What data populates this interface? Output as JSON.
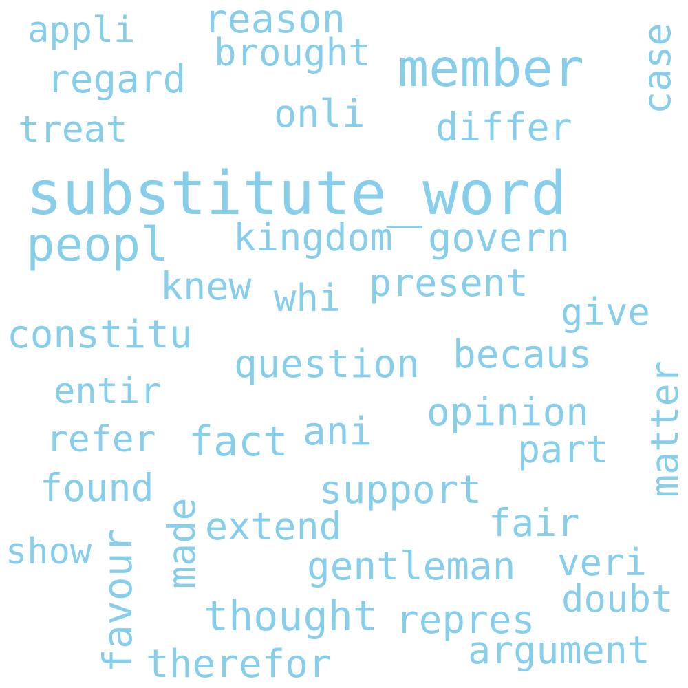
{
  "background": "#ffffff",
  "word_color": "#87ceeb",
  "words": [
    {
      "id": "substitute_word",
      "text": "substitute_word"
    },
    {
      "id": "member",
      "text": "member"
    },
    {
      "id": "peopl",
      "text": "peopl"
    },
    {
      "id": "reason",
      "text": "reason"
    },
    {
      "id": "brought",
      "text": "brought"
    },
    {
      "id": "appli",
      "text": "appli"
    },
    {
      "id": "regard",
      "text": "regard"
    },
    {
      "id": "case",
      "text": "case"
    },
    {
      "id": "onli",
      "text": "onli"
    },
    {
      "id": "treat",
      "text": "treat"
    },
    {
      "id": "differ",
      "text": "differ"
    },
    {
      "id": "kingdom",
      "text": "kingdom"
    },
    {
      "id": "govern",
      "text": "govern"
    },
    {
      "id": "knew",
      "text": "knew"
    },
    {
      "id": "whi",
      "text": "whi"
    },
    {
      "id": "present",
      "text": "present"
    },
    {
      "id": "give",
      "text": "give"
    },
    {
      "id": "constitu",
      "text": "constitu"
    },
    {
      "id": "question",
      "text": "question"
    },
    {
      "id": "becaus",
      "text": "becaus"
    },
    {
      "id": "matter",
      "text": "matter"
    },
    {
      "id": "entir",
      "text": "entir"
    },
    {
      "id": "opinion",
      "text": "opinion"
    },
    {
      "id": "refer",
      "text": "refer"
    },
    {
      "id": "fact",
      "text": "fact"
    },
    {
      "id": "ani",
      "text": "ani"
    },
    {
      "id": "part",
      "text": "part"
    },
    {
      "id": "found",
      "text": "found"
    },
    {
      "id": "support",
      "text": "support"
    },
    {
      "id": "made",
      "text": "made"
    },
    {
      "id": "extend",
      "text": "extend"
    },
    {
      "id": "fair",
      "text": "fair"
    },
    {
      "id": "show",
      "text": "show"
    },
    {
      "id": "favour",
      "text": "favour"
    },
    {
      "id": "gentleman",
      "text": "gentleman"
    },
    {
      "id": "veri",
      "text": "veri"
    },
    {
      "id": "doubt",
      "text": "doubt"
    },
    {
      "id": "thought",
      "text": "thought"
    },
    {
      "id": "repres",
      "text": "repres"
    },
    {
      "id": "argument",
      "text": "argument"
    },
    {
      "id": "therefor",
      "text": "therefor"
    }
  ]
}
